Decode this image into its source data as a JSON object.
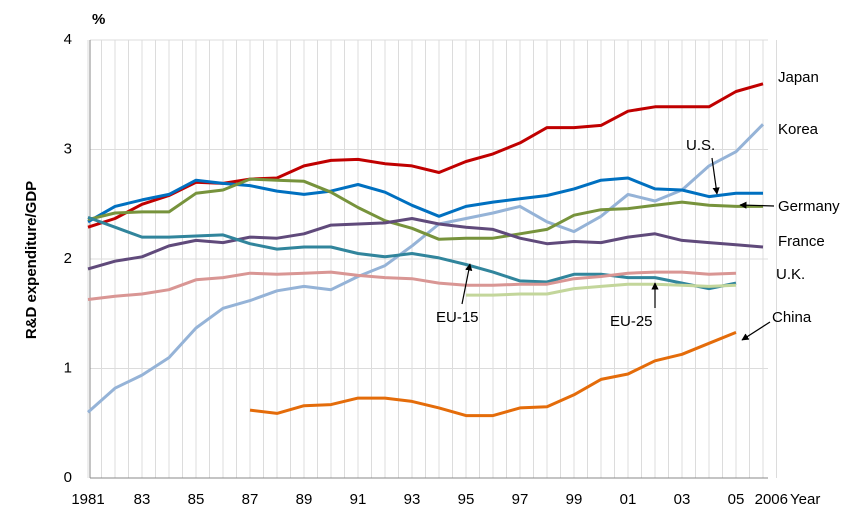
{
  "chart_data": {
    "type": "line",
    "unit": "%",
    "ylabel": "R&D expenditure/GDP",
    "xlabel": "Year",
    "categories": [
      "1981",
      null,
      "83",
      null,
      "85",
      null,
      "87",
      null,
      "89",
      null,
      "91",
      null,
      "93",
      null,
      "95",
      null,
      "97",
      null,
      "99",
      null,
      "01",
      null,
      "03",
      null,
      "05",
      "2006"
    ],
    "ylim": [
      0,
      4
    ],
    "yticks": [
      0,
      1,
      2,
      3,
      4
    ],
    "grid": true,
    "series": [
      {
        "name": "Japan",
        "color": "#c00000",
        "values": [
          2.29,
          2.37,
          2.5,
          2.58,
          2.7,
          2.69,
          2.73,
          2.74,
          2.85,
          2.9,
          2.91,
          2.87,
          2.85,
          2.79,
          2.89,
          2.96,
          3.06,
          3.2,
          3.2,
          3.22,
          3.35,
          3.39,
          3.39,
          3.39,
          3.53,
          3.6
        ]
      },
      {
        "name": "Korea",
        "color": "#95b3d7",
        "values": [
          0.6,
          0.82,
          0.94,
          1.1,
          1.37,
          1.55,
          1.62,
          1.71,
          1.75,
          1.72,
          1.84,
          1.94,
          2.12,
          2.32,
          2.37,
          2.42,
          2.48,
          2.34,
          2.25,
          2.39,
          2.59,
          2.53,
          2.63,
          2.85,
          2.98,
          3.23
        ]
      },
      {
        "name": "U.S.",
        "color": "#0070c0",
        "values": [
          2.34,
          2.48,
          2.54,
          2.59,
          2.72,
          2.69,
          2.67,
          2.62,
          2.59,
          2.62,
          2.68,
          2.61,
          2.49,
          2.39,
          2.48,
          2.52,
          2.55,
          2.58,
          2.64,
          2.72,
          2.74,
          2.64,
          2.63,
          2.57,
          2.6,
          2.6
        ]
      },
      {
        "name": "Germany",
        "color": "#77933c",
        "values": [
          2.36,
          2.42,
          2.43,
          2.43,
          2.6,
          2.63,
          2.73,
          2.72,
          2.71,
          2.61,
          2.47,
          2.35,
          2.28,
          2.18,
          2.19,
          2.19,
          2.23,
          2.27,
          2.4,
          2.45,
          2.46,
          2.49,
          2.52,
          2.49,
          2.48,
          2.48
        ]
      },
      {
        "name": "France",
        "color": "#604a7b",
        "values": [
          1.91,
          1.98,
          2.02,
          2.12,
          2.17,
          2.15,
          2.2,
          2.19,
          2.23,
          2.31,
          2.32,
          2.33,
          2.37,
          2.32,
          2.29,
          2.27,
          2.19,
          2.14,
          2.16,
          2.15,
          2.2,
          2.23,
          2.17,
          2.15,
          2.13,
          2.11
        ]
      },
      {
        "name": "U.K.",
        "color": "#31859c",
        "values": [
          2.38,
          2.29,
          2.2,
          2.2,
          2.21,
          2.22,
          2.14,
          2.09,
          2.11,
          2.11,
          2.05,
          2.02,
          2.05,
          2.01,
          1.95,
          1.88,
          1.8,
          1.79,
          1.86,
          1.86,
          1.83,
          1.83,
          1.78,
          1.73,
          1.78,
          null
        ]
      },
      {
        "name": "EU-15",
        "color": "#d99694",
        "values": [
          1.63,
          1.66,
          1.68,
          1.72,
          1.81,
          1.83,
          1.87,
          1.86,
          1.87,
          1.88,
          1.85,
          1.83,
          1.82,
          1.78,
          1.76,
          1.76,
          1.77,
          1.77,
          1.82,
          1.84,
          1.87,
          1.88,
          1.88,
          1.86,
          1.87,
          null
        ]
      },
      {
        "name": "EU-25",
        "color": "#c3d69b",
        "values": [
          null,
          null,
          null,
          null,
          null,
          null,
          null,
          null,
          null,
          null,
          null,
          null,
          null,
          null,
          1.67,
          1.67,
          1.68,
          1.68,
          1.73,
          1.75,
          1.77,
          1.77,
          1.76,
          1.75,
          1.76,
          null
        ]
      },
      {
        "name": "China",
        "color": "#e46c0a",
        "values": [
          null,
          null,
          null,
          null,
          null,
          null,
          0.62,
          0.59,
          0.66,
          0.67,
          0.73,
          0.73,
          0.7,
          0.64,
          0.57,
          0.57,
          0.64,
          0.65,
          0.76,
          0.9,
          0.95,
          1.07,
          1.13,
          1.23,
          1.33,
          null
        ]
      }
    ]
  }
}
